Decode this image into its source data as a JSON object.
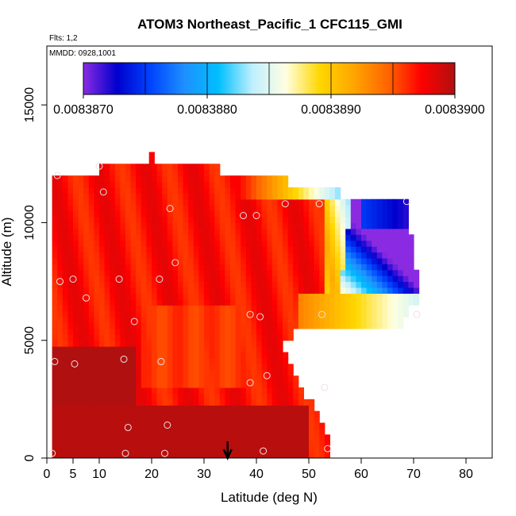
{
  "chart_data": {
    "type": "heatmap",
    "title": "ATOM3 Northeast_Pacific_1 CFC115_GMI",
    "flights_label": "Flts: 1,2",
    "mmdd_label": "MMDD: 0928,1001",
    "xlabel": "Latitude (deg N)",
    "ylabel": "Altitude (m)",
    "xlim": [
      0,
      85
    ],
    "ylim": [
      0,
      17500
    ],
    "x_ticks": [
      0,
      5,
      10,
      20,
      30,
      40,
      50,
      60,
      70,
      80
    ],
    "x_tick_labels": [
      "0",
      "5",
      "10",
      "20",
      "30",
      "40",
      "50",
      "60",
      "70",
      "80"
    ],
    "y_ticks": [
      0,
      5000,
      10000,
      15000
    ],
    "y_tick_labels": [
      "0",
      "5000",
      "10000",
      "15000"
    ],
    "colorbar": {
      "min": 0.008387,
      "max": 0.00839,
      "tick_values": [
        0.008387,
        0.008388,
        0.008389,
        0.00839
      ],
      "tick_labels": [
        "0.0083870",
        "0.0083880",
        "0.0083890",
        "0.0083900"
      ],
      "colors": [
        "#8a2be2",
        "#0000cd",
        "#0044ff",
        "#1e90ff",
        "#00bfff",
        "#bfefff",
        "#ffffe0",
        "#ffd700",
        "#ffa500",
        "#ff6600",
        "#ff0000",
        "#b01010"
      ]
    },
    "marker_latitude": 34.5,
    "profile_points": [
      {
        "lat": 1.0,
        "alt": 200
      },
      {
        "lat": 1.5,
        "alt": 4100
      },
      {
        "lat": 2.0,
        "alt": 12000
      },
      {
        "lat": 2.5,
        "alt": 7500
      },
      {
        "lat": 5.0,
        "alt": 7600
      },
      {
        "lat": 5.3,
        "alt": 4000
      },
      {
        "lat": 7.5,
        "alt": 6800
      },
      {
        "lat": 10.0,
        "alt": 12400
      },
      {
        "lat": 10.8,
        "alt": 11300
      },
      {
        "lat": 13.8,
        "alt": 7600
      },
      {
        "lat": 14.7,
        "alt": 4200
      },
      {
        "lat": 15.0,
        "alt": 200
      },
      {
        "lat": 15.5,
        "alt": 1300
      },
      {
        "lat": 16.7,
        "alt": 5800
      },
      {
        "lat": 21.5,
        "alt": 7600
      },
      {
        "lat": 21.8,
        "alt": 4100
      },
      {
        "lat": 22.5,
        "alt": 200
      },
      {
        "lat": 23.0,
        "alt": 1400
      },
      {
        "lat": 23.5,
        "alt": 10600
      },
      {
        "lat": 24.5,
        "alt": 8300
      },
      {
        "lat": 37.5,
        "alt": 10300
      },
      {
        "lat": 38.8,
        "alt": 6100
      },
      {
        "lat": 38.8,
        "alt": 3200
      },
      {
        "lat": 40.0,
        "alt": 10300
      },
      {
        "lat": 40.7,
        "alt": 6000
      },
      {
        "lat": 41.3,
        "alt": 300
      },
      {
        "lat": 42.0,
        "alt": 3500
      },
      {
        "lat": 45.5,
        "alt": 10800
      },
      {
        "lat": 52.0,
        "alt": 10800
      },
      {
        "lat": 52.5,
        "alt": 6100
      },
      {
        "lat": 53.0,
        "alt": 3000
      },
      {
        "lat": 53.6,
        "alt": 400
      },
      {
        "lat": 68.7,
        "alt": 10900
      },
      {
        "lat": 70.6,
        "alt": 6100
      }
    ]
  }
}
